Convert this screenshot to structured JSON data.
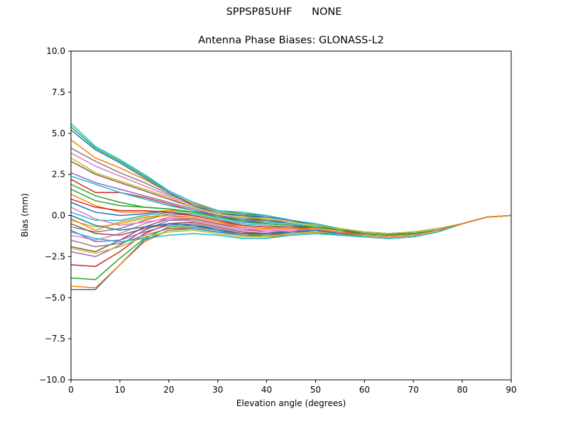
{
  "figure": {
    "suptitle": "SPPSP85UHF      NONE"
  },
  "chart_data": {
    "type": "line",
    "title": "Antenna Phase Biases: GLONASS-L2",
    "xlabel": "Elevation angle (degrees)",
    "ylabel": "Bias (mm)",
    "xlim": [
      0,
      90
    ],
    "ylim": [
      -10,
      10
    ],
    "x_ticks": [
      0,
      10,
      20,
      30,
      40,
      50,
      60,
      70,
      80,
      90
    ],
    "x_tick_labels": [
      "0",
      "10",
      "20",
      "30",
      "40",
      "50",
      "60",
      "70",
      "80",
      "90"
    ],
    "y_ticks": [
      -10,
      -7.5,
      -5,
      -2.5,
      0,
      2.5,
      5,
      7.5,
      10
    ],
    "y_tick_labels": [
      "−10.0",
      "−7.5",
      "−5.0",
      "−2.5",
      "0.0",
      "2.5",
      "5.0",
      "7.5",
      "10.0"
    ],
    "grid": false,
    "legend": "none",
    "x": [
      0,
      5,
      10,
      15,
      20,
      25,
      30,
      35,
      40,
      45,
      50,
      55,
      60,
      65,
      70,
      75,
      80,
      85,
      90
    ],
    "series": [
      {
        "color": "#1f77b4",
        "values": [
          -4.5,
          -4.5,
          -3.0,
          -1.5,
          -0.9,
          -0.8,
          -1.0,
          -1.2,
          -1.3,
          -1.2,
          -1.1,
          -1.2,
          -1.3,
          -1.4,
          -1.3,
          -1.0,
          -0.5,
          -0.1,
          0.0
        ]
      },
      {
        "color": "#ff7f0e",
        "values": [
          -4.3,
          -4.4,
          -3.0,
          -1.6,
          -0.9,
          -0.7,
          -0.9,
          -1.2,
          -1.3,
          -1.2,
          -1.1,
          -1.2,
          -1.3,
          -1.4,
          -1.3,
          -1.0,
          -0.5,
          -0.1,
          0.0
        ]
      },
      {
        "color": "#2ca02c",
        "values": [
          -3.8,
          -3.9,
          -2.6,
          -1.4,
          -0.7,
          -0.6,
          -0.8,
          -1.1,
          -1.2,
          -1.1,
          -1.0,
          -1.2,
          -1.3,
          -1.4,
          -1.3,
          -1.0,
          -0.5,
          -0.1,
          0.0
        ]
      },
      {
        "color": "#d62728",
        "values": [
          -3.0,
          -3.1,
          -2.2,
          -1.1,
          -0.5,
          -0.4,
          -0.7,
          -1.0,
          -1.1,
          -1.1,
          -1.0,
          -1.1,
          -1.3,
          -1.4,
          -1.3,
          -1.0,
          -0.5,
          -0.1,
          0.0
        ]
      },
      {
        "color": "#9467bd",
        "values": [
          -2.2,
          -2.5,
          -1.8,
          -0.9,
          -0.3,
          -0.3,
          -0.6,
          -0.9,
          -1.0,
          -1.0,
          -1.0,
          -1.1,
          -1.2,
          -1.3,
          -1.2,
          -0.9,
          -0.5,
          -0.1,
          0.0
        ]
      },
      {
        "color": "#8c564b",
        "values": [
          -1.9,
          -2.2,
          -1.5,
          -0.7,
          -0.2,
          -0.2,
          -0.5,
          -0.8,
          -1.0,
          -1.0,
          -0.9,
          -1.1,
          -1.2,
          -1.3,
          -1.2,
          -0.9,
          -0.5,
          -0.1,
          0.0
        ]
      },
      {
        "color": "#e377c2",
        "values": [
          -1.2,
          -1.5,
          -1.1,
          -0.5,
          -0.1,
          -0.1,
          -0.4,
          -0.8,
          -0.9,
          -0.9,
          -0.9,
          -1.1,
          -1.2,
          -1.3,
          -1.2,
          -0.9,
          -0.5,
          -0.1,
          0.0
        ]
      },
      {
        "color": "#7f7f7f",
        "values": [
          -0.7,
          -1.0,
          -0.8,
          -0.3,
          0.1,
          0.0,
          -0.3,
          -0.7,
          -0.8,
          -0.8,
          -0.9,
          -1.0,
          -1.2,
          -1.3,
          -1.2,
          -0.9,
          -0.5,
          -0.1,
          0.0
        ]
      },
      {
        "color": "#bcbd22",
        "values": [
          -0.3,
          -0.7,
          -0.5,
          -0.2,
          0.2,
          0.1,
          -0.2,
          -0.6,
          -0.7,
          -0.7,
          -0.8,
          -1.0,
          -1.1,
          -1.2,
          -1.1,
          -0.9,
          -0.5,
          -0.1,
          0.0
        ]
      },
      {
        "color": "#17becf",
        "values": [
          0.2,
          -0.3,
          -0.3,
          0.0,
          0.2,
          0.1,
          -0.2,
          -0.5,
          -0.6,
          -0.7,
          -0.8,
          -1.0,
          -1.1,
          -1.2,
          -1.1,
          -0.9,
          -0.5,
          -0.1,
          0.0
        ]
      },
      {
        "color": "#1f77b4",
        "values": [
          0.8,
          0.2,
          0.0,
          0.1,
          0.3,
          0.2,
          -0.1,
          -0.4,
          -0.5,
          -0.6,
          -0.8,
          -1.0,
          -1.1,
          -1.2,
          -1.1,
          -0.9,
          -0.5,
          -0.1,
          0.0
        ]
      },
      {
        "color": "#ff7f0e",
        "values": [
          1.3,
          0.6,
          0.2,
          0.2,
          0.3,
          0.2,
          -0.1,
          -0.3,
          -0.5,
          -0.6,
          -0.7,
          -0.9,
          -1.1,
          -1.2,
          -1.1,
          -0.9,
          -0.5,
          -0.1,
          0.0
        ]
      },
      {
        "color": "#2ca02c",
        "values": [
          1.9,
          1.2,
          0.8,
          0.5,
          0.4,
          0.2,
          0.0,
          -0.3,
          -0.4,
          -0.5,
          -0.7,
          -0.9,
          -1.1,
          -1.2,
          -1.1,
          -0.9,
          -0.5,
          -0.1,
          0.0
        ]
      },
      {
        "color": "#d62728",
        "values": [
          2.2,
          1.4,
          1.4,
          1.1,
          0.7,
          0.3,
          0.0,
          -0.2,
          -0.4,
          -0.5,
          -0.7,
          -0.9,
          -1.1,
          -1.2,
          -1.1,
          -0.9,
          -0.5,
          -0.1,
          0.0
        ]
      },
      {
        "color": "#9467bd",
        "values": [
          2.6,
          2.0,
          1.6,
          1.2,
          0.8,
          0.4,
          0.0,
          -0.2,
          -0.3,
          -0.5,
          -0.7,
          -0.9,
          -1.0,
          -1.1,
          -1.1,
          -0.9,
          -0.5,
          -0.1,
          0.0
        ]
      },
      {
        "color": "#8c564b",
        "values": [
          3.3,
          2.5,
          2.0,
          1.5,
          1.0,
          0.5,
          0.1,
          -0.1,
          -0.3,
          -0.4,
          -0.6,
          -0.9,
          -1.0,
          -1.1,
          -1.1,
          -0.9,
          -0.5,
          -0.1,
          0.0
        ]
      },
      {
        "color": "#e377c2",
        "values": [
          3.8,
          3.0,
          2.4,
          1.8,
          1.2,
          0.6,
          0.2,
          0.0,
          -0.2,
          -0.4,
          -0.6,
          -0.8,
          -1.0,
          -1.1,
          -1.1,
          -0.9,
          -0.5,
          -0.1,
          0.0
        ]
      },
      {
        "color": "#7f7f7f",
        "values": [
          4.1,
          3.3,
          2.6,
          2.0,
          1.3,
          0.7,
          0.2,
          0.0,
          -0.2,
          -0.4,
          -0.6,
          -0.8,
          -1.0,
          -1.1,
          -1.1,
          -0.9,
          -0.5,
          -0.1,
          0.0
        ]
      },
      {
        "color": "#ff7f0e",
        "values": [
          4.6,
          3.5,
          2.9,
          2.2,
          1.4,
          0.7,
          0.3,
          0.1,
          -0.1,
          -0.3,
          -0.6,
          -0.8,
          -1.0,
          -1.1,
          -1.0,
          -0.8,
          -0.5,
          -0.1,
          0.0
        ]
      },
      {
        "color": "#2ca02c",
        "values": [
          5.4,
          4.1,
          3.3,
          2.4,
          1.5,
          0.8,
          0.3,
          0.1,
          0.0,
          -0.3,
          -0.5,
          -0.8,
          -1.0,
          -1.1,
          -1.0,
          -0.8,
          -0.5,
          -0.1,
          0.0
        ]
      },
      {
        "color": "#17becf",
        "values": [
          5.6,
          4.2,
          3.4,
          2.5,
          1.5,
          0.8,
          0.3,
          0.2,
          0.0,
          -0.3,
          -0.5,
          -0.8,
          -1.0,
          -1.1,
          -1.0,
          -0.8,
          -0.5,
          -0.1,
          0.0
        ]
      },
      {
        "color": "#1f77b4",
        "values": [
          5.2,
          4.0,
          3.2,
          2.3,
          1.4,
          0.6,
          0.1,
          0.0,
          -0.1,
          -0.3,
          -0.6,
          -0.8,
          -1.0,
          -1.1,
          -1.0,
          -0.8,
          -0.5,
          -0.1,
          0.0
        ]
      },
      {
        "color": "#bcbd22",
        "values": [
          3.5,
          2.6,
          2.1,
          1.6,
          1.1,
          0.5,
          0.1,
          -0.1,
          -0.2,
          -0.4,
          -0.6,
          -0.8,
          -1.0,
          -1.1,
          -1.0,
          -0.8,
          -0.5,
          -0.1,
          0.0
        ]
      },
      {
        "color": "#17becf",
        "values": [
          2.4,
          1.9,
          1.4,
          1.0,
          0.6,
          0.3,
          -0.1,
          -0.3,
          -0.4,
          -0.5,
          -0.7,
          -0.9,
          -1.1,
          -1.2,
          -1.1,
          -0.9,
          -0.5,
          -0.1,
          0.0
        ]
      },
      {
        "color": "#d62728",
        "values": [
          1.0,
          0.5,
          0.3,
          0.3,
          0.2,
          0.0,
          -0.3,
          -0.6,
          -0.7,
          -0.7,
          -0.8,
          -1.0,
          -1.1,
          -1.2,
          -1.1,
          -0.9,
          -0.5,
          -0.1,
          0.0
        ]
      },
      {
        "color": "#9467bd",
        "values": [
          -0.9,
          -1.6,
          -1.5,
          -1.0,
          -0.6,
          -0.5,
          -0.8,
          -1.1,
          -1.1,
          -1.0,
          -0.9,
          -1.1,
          -1.2,
          -1.3,
          -1.2,
          -0.9,
          -0.5,
          -0.1,
          0.0
        ]
      },
      {
        "color": "#8c564b",
        "values": [
          -0.5,
          -1.1,
          -1.2,
          -0.8,
          -0.5,
          -0.4,
          -0.7,
          -1.0,
          -1.1,
          -1.0,
          -0.9,
          -1.1,
          -1.2,
          -1.3,
          -1.2,
          -0.9,
          -0.5,
          -0.1,
          0.0
        ]
      },
      {
        "color": "#e377c2",
        "values": [
          0.5,
          -0.2,
          -0.6,
          -0.4,
          -0.2,
          -0.3,
          -0.6,
          -0.9,
          -1.0,
          -0.9,
          -0.9,
          -1.0,
          -1.2,
          -1.3,
          -1.2,
          -0.9,
          -0.5,
          -0.1,
          0.0
        ]
      },
      {
        "color": "#7f7f7f",
        "values": [
          -1.5,
          -1.9,
          -1.7,
          -1.2,
          -0.8,
          -0.7,
          -0.9,
          -1.2,
          -1.2,
          -1.1,
          -1.0,
          -1.1,
          -1.2,
          -1.3,
          -1.2,
          -0.9,
          -0.5,
          -0.1,
          0.0
        ]
      },
      {
        "color": "#bcbd22",
        "values": [
          -2.0,
          -2.3,
          -1.9,
          -1.3,
          -1.0,
          -0.9,
          -1.1,
          -1.3,
          -1.3,
          -1.1,
          -1.0,
          -1.1,
          -1.3,
          -1.4,
          -1.3,
          -1.0,
          -0.5,
          -0.1,
          0.0
        ]
      },
      {
        "color": "#17becf",
        "values": [
          -1.0,
          -1.4,
          -1.6,
          -1.4,
          -1.2,
          -1.1,
          -1.2,
          -1.4,
          -1.4,
          -1.2,
          -1.1,
          -1.2,
          -1.3,
          -1.4,
          -1.3,
          -1.0,
          -0.5,
          -0.1,
          0.0
        ]
      },
      {
        "color": "#2ca02c",
        "values": [
          1.6,
          0.9,
          0.6,
          0.5,
          0.4,
          0.2,
          -0.1,
          -0.3,
          -0.5,
          -0.6,
          -0.7,
          -0.9,
          -1.1,
          -1.2,
          -1.1,
          -0.9,
          -0.5,
          -0.1,
          0.0
        ]
      },
      {
        "color": "#1f77b4",
        "values": [
          0.0,
          -0.6,
          -0.9,
          -0.7,
          -0.5,
          -0.6,
          -0.9,
          -1.1,
          -1.1,
          -1.0,
          -0.9,
          -1.1,
          -1.2,
          -1.3,
          -1.2,
          -0.9,
          -0.5,
          -0.1,
          0.0
        ]
      },
      {
        "color": "#ff7f0e",
        "values": [
          -0.2,
          -0.9,
          -0.4,
          -0.1,
          0.0,
          -0.1,
          -0.4,
          -0.7,
          -0.8,
          -0.8,
          -0.8,
          -1.0,
          -1.2,
          -1.3,
          -1.2,
          -0.9,
          -0.5,
          -0.1,
          0.0
        ]
      }
    ]
  }
}
